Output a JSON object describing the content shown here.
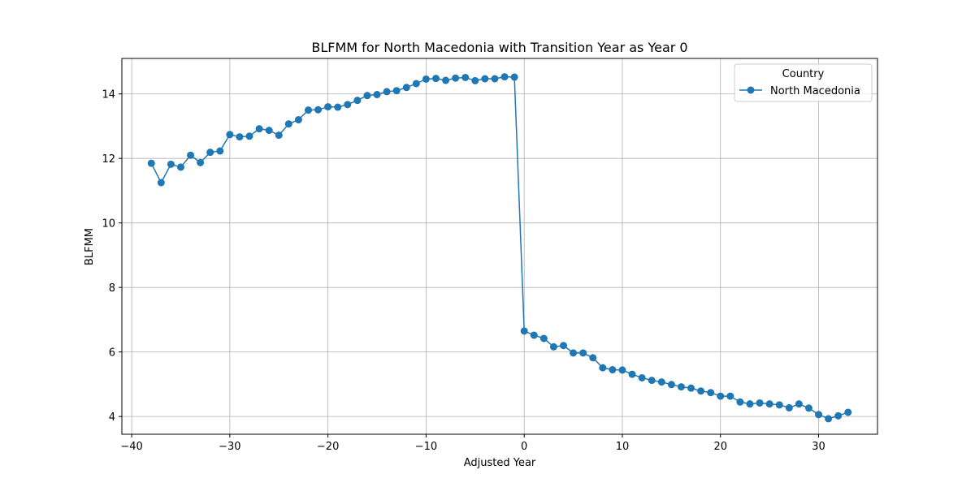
{
  "chart_data": {
    "type": "line",
    "title": "BLFMM for North Macedonia with Transition Year as Year 0",
    "xlabel": "Adjusted Year",
    "ylabel": "BLFMM",
    "xlim": [
      -41,
      36
    ],
    "ylim": [
      3.45,
      15.1
    ],
    "x_ticks": [
      -40,
      -30,
      -20,
      -10,
      0,
      10,
      20,
      30
    ],
    "x_tick_labels": [
      "−40",
      "−30",
      "−20",
      "−10",
      "0",
      "10",
      "20",
      "30"
    ],
    "y_ticks": [
      4,
      6,
      8,
      10,
      12,
      14
    ],
    "y_tick_labels": [
      "4",
      "6",
      "8",
      "10",
      "12",
      "14"
    ],
    "grid": true,
    "legend": {
      "title": "Country",
      "position": "top-right"
    },
    "series": [
      {
        "name": "North Macedonia",
        "color": "#1f77b4",
        "marker": "circle",
        "x": [
          -38,
          -37,
          -36,
          -35,
          -34,
          -33,
          -32,
          -31,
          -30,
          -29,
          -28,
          -27,
          -26,
          -25,
          -24,
          -23,
          -22,
          -21,
          -20,
          -19,
          -18,
          -17,
          -16,
          -15,
          -14,
          -13,
          -12,
          -11,
          -10,
          -9,
          -8,
          -7,
          -6,
          -5,
          -4,
          -3,
          -2,
          -1,
          0,
          1,
          2,
          3,
          4,
          5,
          6,
          7,
          8,
          9,
          10,
          11,
          12,
          13,
          14,
          15,
          16,
          17,
          18,
          19,
          20,
          21,
          22,
          23,
          24,
          25,
          26,
          27,
          28,
          29,
          30,
          31,
          32,
          33
        ],
        "y": [
          11.85,
          11.25,
          11.82,
          11.73,
          12.1,
          11.87,
          12.19,
          12.23,
          12.74,
          12.67,
          12.69,
          12.92,
          12.87,
          12.72,
          13.07,
          13.2,
          13.5,
          13.51,
          13.6,
          13.59,
          13.67,
          13.8,
          13.95,
          13.98,
          14.07,
          14.1,
          14.2,
          14.32,
          14.46,
          14.48,
          14.42,
          14.49,
          14.51,
          14.41,
          14.47,
          14.47,
          14.53,
          14.52,
          6.65,
          6.52,
          6.42,
          6.16,
          6.2,
          5.97,
          5.97,
          5.82,
          5.51,
          5.45,
          5.44,
          5.31,
          5.2,
          5.12,
          5.07,
          4.99,
          4.92,
          4.88,
          4.79,
          4.74,
          4.63,
          4.63,
          4.45,
          4.39,
          4.42,
          4.39,
          4.36,
          4.27,
          4.39,
          4.26,
          4.06,
          3.93,
          4.02,
          4.13
        ]
      }
    ]
  }
}
